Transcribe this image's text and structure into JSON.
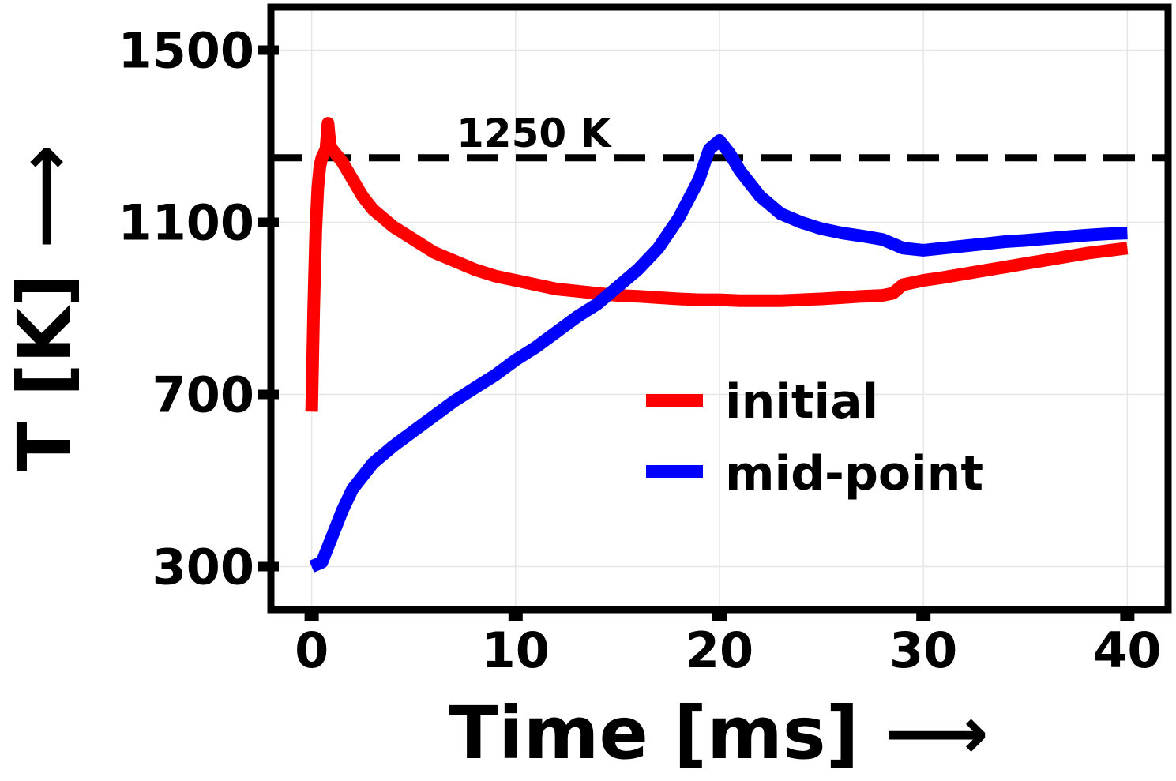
{
  "chart_data": {
    "type": "line",
    "xlabel": "Time [ms] ⟶",
    "ylabel": "T [K] ⟶",
    "xlim": [
      -2,
      42
    ],
    "ylim": [
      200,
      1600
    ],
    "xticks": [
      0,
      10,
      20,
      30,
      40
    ],
    "yticks": [
      300,
      700,
      1100,
      1500
    ],
    "grid": true,
    "legend_position": "center-right",
    "reference_line": {
      "y": 1250,
      "label": "1250 K",
      "style": "dashed",
      "color": "#000000"
    },
    "series": [
      {
        "name": "initial",
        "color": "#ff0000",
        "x": [
          0,
          0.1,
          0.2,
          0.3,
          0.4,
          0.5,
          0.6,
          0.7,
          0.8,
          0.9,
          1.0,
          1.5,
          2,
          2.5,
          3,
          4,
          5,
          6,
          7,
          8,
          9,
          10,
          11,
          12,
          13,
          14,
          15,
          16,
          17,
          18,
          19,
          20,
          21,
          22,
          23,
          24,
          25,
          26,
          27,
          28,
          28.5,
          29,
          30,
          31,
          32,
          33,
          34,
          35,
          36,
          37,
          38,
          39,
          40
        ],
        "y": [
          660,
          900,
          1080,
          1180,
          1230,
          1250,
          1260,
          1270,
          1330,
          1280,
          1270,
          1240,
          1200,
          1160,
          1130,
          1090,
          1060,
          1030,
          1010,
          990,
          975,
          965,
          955,
          945,
          940,
          935,
          930,
          928,
          925,
          922,
          920,
          920,
          918,
          918,
          918,
          920,
          922,
          925,
          928,
          930,
          935,
          955,
          965,
          972,
          980,
          988,
          996,
          1004,
          1012,
          1020,
          1028,
          1034,
          1040
        ]
      },
      {
        "name": "mid-point",
        "color": "#0000ff",
        "x": [
          0,
          0.5,
          1,
          1.5,
          2,
          3,
          4,
          5,
          6,
          7,
          8,
          9,
          10,
          11,
          12,
          13,
          14,
          15,
          16,
          17,
          18,
          19,
          19.5,
          20,
          20.5,
          21,
          22,
          23,
          24,
          25,
          26,
          27,
          28,
          28.5,
          29,
          30,
          31,
          32,
          33,
          34,
          35,
          36,
          37,
          38,
          39,
          40
        ],
        "y": [
          300,
          310,
          370,
          430,
          480,
          540,
          580,
          615,
          650,
          685,
          715,
          745,
          780,
          810,
          845,
          880,
          910,
          950,
          990,
          1040,
          1110,
          1200,
          1270,
          1290,
          1260,
          1220,
          1160,
          1120,
          1100,
          1085,
          1075,
          1068,
          1060,
          1050,
          1040,
          1035,
          1040,
          1045,
          1050,
          1055,
          1058,
          1062,
          1066,
          1070,
          1073,
          1075
        ]
      }
    ]
  }
}
